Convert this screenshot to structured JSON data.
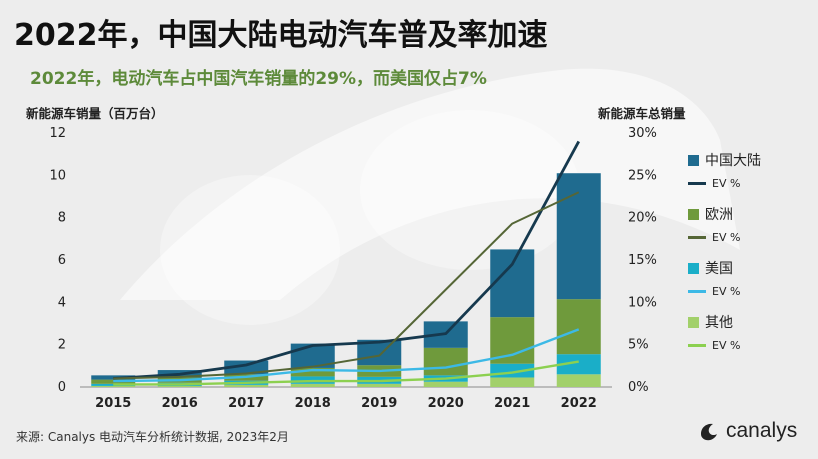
{
  "title": "2022年，中国大陆电动汽车普及率加速",
  "subtitle": "2022年，电动汽车占中国汽车销量的29%，而美国仅占7%",
  "source": "来源: Canalys 电动汽车分析统计数据, 2023年2月",
  "brand": {
    "name": "canalys",
    "icon": "canalys-logo-icon"
  },
  "colors": {
    "china": "#1f6b8f",
    "europe": "#6f9a3c",
    "usa": "#1aaec8",
    "other": "#a2d06a",
    "china_ev": "#16394e",
    "europe_ev": "#556636",
    "usa_ev": "#3cb9e6",
    "other_ev": "#8cd050"
  },
  "chart_data": {
    "type": "bar",
    "stacked": true,
    "categories": [
      "2015",
      "2016",
      "2017",
      "2018",
      "2019",
      "2020",
      "2021",
      "2022"
    ],
    "ylabel": "新能源车销量（百万台）",
    "y2label": "新能源车总销量",
    "ylim": [
      0,
      12
    ],
    "yticks": [
      "0",
      "2",
      "4",
      "6",
      "8",
      "10",
      "12"
    ],
    "y2lim": [
      0,
      30
    ],
    "y2ticks": [
      "0%",
      "5%",
      "10%",
      "15%",
      "20%",
      "25%",
      "30%"
    ],
    "legend_position": "right",
    "series": [
      {
        "name": "其他",
        "key": "other",
        "values": [
          0.05,
          0.05,
          0.1,
          0.15,
          0.15,
          0.25,
          0.45,
          0.6
        ]
      },
      {
        "name": "美国",
        "key": "usa",
        "values": [
          0.1,
          0.15,
          0.2,
          0.35,
          0.33,
          0.3,
          0.65,
          0.95
        ]
      },
      {
        "name": "欧洲",
        "key": "europe",
        "values": [
          0.2,
          0.25,
          0.3,
          0.4,
          0.55,
          1.3,
          2.2,
          2.6
        ]
      },
      {
        "name": "中国大陆",
        "key": "china",
        "values": [
          0.2,
          0.35,
          0.65,
          1.15,
          1.2,
          1.25,
          3.2,
          5.95
        ]
      }
    ],
    "line_series": [
      {
        "name": "EV %",
        "key": "china_ev",
        "region": "中国大陆",
        "values": [
          1.0,
          1.5,
          2.6,
          4.9,
          5.3,
          6.3,
          14.5,
          29.0
        ]
      },
      {
        "name": "EV %",
        "key": "europe_ev",
        "region": "欧洲",
        "values": [
          1.0,
          1.2,
          1.6,
          2.4,
          3.7,
          11.5,
          19.3,
          23.0
        ]
      },
      {
        "name": "EV %",
        "key": "usa_ev",
        "region": "美国",
        "values": [
          0.7,
          0.8,
          1.2,
          2.0,
          1.9,
          2.3,
          3.8,
          6.8
        ]
      },
      {
        "name": "EV %",
        "key": "other_ev",
        "region": "其他",
        "values": [
          0.3,
          0.3,
          0.5,
          0.7,
          0.7,
          1.0,
          1.7,
          3.0
        ]
      }
    ],
    "legend": [
      {
        "label": "中国大陆",
        "kind": "bar",
        "key": "china"
      },
      {
        "label": "EV %",
        "kind": "line",
        "key": "china_ev"
      },
      {
        "label": "欧洲",
        "kind": "bar",
        "key": "europe"
      },
      {
        "label": "EV %",
        "kind": "line",
        "key": "europe_ev"
      },
      {
        "label": "美国",
        "kind": "bar",
        "key": "usa"
      },
      {
        "label": "EV %",
        "kind": "line",
        "key": "usa_ev"
      },
      {
        "label": "其他",
        "kind": "bar",
        "key": "other"
      },
      {
        "label": "EV %",
        "kind": "line",
        "key": "other_ev"
      }
    ]
  }
}
